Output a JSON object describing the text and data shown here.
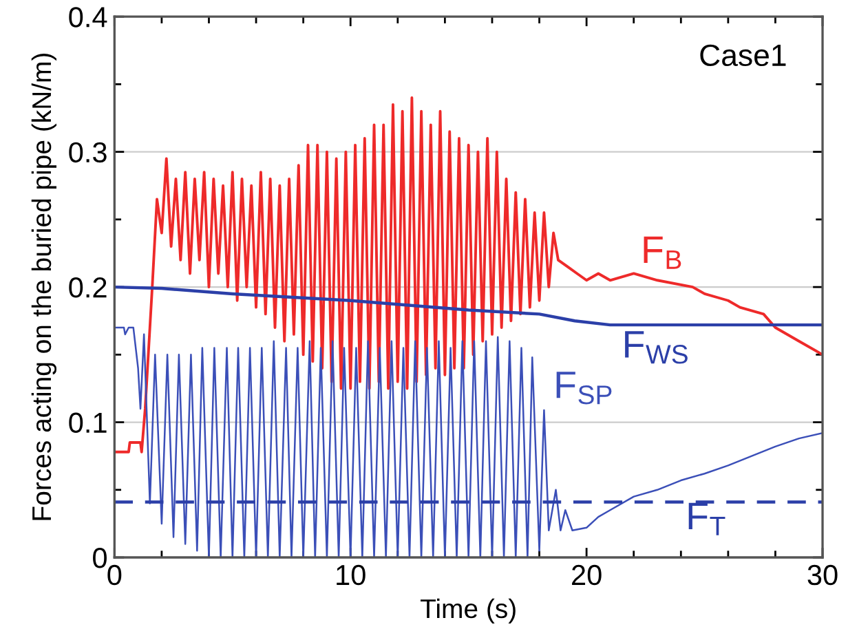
{
  "chart_data": {
    "type": "line",
    "xlabel": "Time (s)",
    "ylabel": "Forces acting on the buried pipe (kN/m)",
    "xlim": [
      0,
      30
    ],
    "ylim": [
      0,
      0.4
    ],
    "xticks": [
      0,
      {
        "value": 2,
        "label": null
      },
      {
        "value": 4,
        "label": null
      },
      {
        "value": 6,
        "label": null
      },
      {
        "value": 8,
        "label": null
      },
      10,
      {
        "value": 12,
        "label": null
      },
      {
        "value": 14,
        "label": null
      },
      {
        "value": 16,
        "label": null
      },
      {
        "value": 18,
        "label": null
      },
      20,
      {
        "value": 22,
        "label": null
      },
      {
        "value": 24,
        "label": null
      },
      {
        "value": 26,
        "label": null
      },
      {
        "value": 28,
        "label": null
      },
      30
    ],
    "yticks": [
      0,
      {
        "value": 0.05,
        "label": null
      },
      0.1,
      {
        "value": 0.15,
        "label": null
      },
      0.2,
      {
        "value": 0.25,
        "label": null
      },
      0.3,
      {
        "value": 0.35,
        "label": null
      },
      0.4
    ],
    "grid": "y",
    "series": [
      {
        "name": "F$_{B}$",
        "color": "#ee2a2a",
        "line_style": "solid",
        "x": [
          0,
          0.6,
          0.65,
          1.1,
          1.15,
          1.3,
          1.5,
          1.6,
          1.8,
          2.0,
          2.2,
          2.4,
          2.6,
          2.8,
          3.0,
          3.2,
          3.4,
          3.6,
          3.8,
          4.0,
          4.2,
          4.4,
          4.6,
          4.8,
          5.0,
          5.2,
          5.4,
          5.6,
          5.8,
          6.0,
          6.2,
          6.4,
          6.6,
          6.8,
          7.0,
          7.2,
          7.4,
          7.6,
          7.8,
          8.0,
          8.2,
          8.4,
          8.6,
          8.8,
          9.0,
          9.2,
          9.4,
          9.6,
          9.8,
          10.0,
          10.2,
          10.4,
          10.6,
          10.8,
          11.0,
          11.2,
          11.4,
          11.6,
          11.8,
          12.0,
          12.2,
          12.4,
          12.6,
          12.8,
          13.0,
          13.2,
          13.4,
          13.6,
          13.8,
          14.0,
          14.2,
          14.4,
          14.6,
          14.8,
          15.0,
          15.2,
          15.4,
          15.6,
          15.8,
          16.0,
          16.2,
          16.4,
          16.6,
          16.8,
          17.0,
          17.2,
          17.4,
          17.6,
          17.8,
          18.0,
          18.2,
          18.4,
          18.6,
          18.8,
          19.2,
          19.6,
          20,
          20.5,
          21,
          22,
          23,
          24.5,
          25,
          26,
          26.5,
          27.5,
          28,
          29,
          30
        ],
        "values": [
          0.078,
          0.078,
          0.085,
          0.085,
          0.078,
          0.11,
          0.17,
          0.2,
          0.265,
          0.24,
          0.295,
          0.23,
          0.28,
          0.22,
          0.285,
          0.21,
          0.28,
          0.22,
          0.285,
          0.2,
          0.28,
          0.21,
          0.275,
          0.2,
          0.285,
          0.19,
          0.28,
          0.2,
          0.275,
          0.185,
          0.285,
          0.18,
          0.28,
          0.17,
          0.275,
          0.16,
          0.28,
          0.165,
          0.29,
          0.15,
          0.305,
          0.145,
          0.305,
          0.14,
          0.3,
          0.13,
          0.295,
          0.125,
          0.3,
          0.125,
          0.305,
          0.13,
          0.31,
          0.125,
          0.32,
          0.13,
          0.32,
          0.125,
          0.335,
          0.13,
          0.33,
          0.125,
          0.34,
          0.13,
          0.33,
          0.135,
          0.32,
          0.14,
          0.33,
          0.135,
          0.315,
          0.14,
          0.31,
          0.14,
          0.305,
          0.15,
          0.3,
          0.16,
          0.31,
          0.165,
          0.3,
          0.17,
          0.28,
          0.175,
          0.27,
          0.18,
          0.265,
          0.185,
          0.255,
          0.19,
          0.255,
          0.2,
          0.24,
          0.22,
          0.215,
          0.21,
          0.205,
          0.21,
          0.205,
          0.21,
          0.205,
          0.2,
          0.195,
          0.19,
          0.185,
          0.18,
          0.17,
          0.16,
          0.15
        ]
      },
      {
        "name": "F$_{WS}$",
        "color": "#2b3fa8",
        "line_style": "solid",
        "x": [
          0,
          2,
          5,
          10,
          15,
          18,
          19.5,
          21,
          25,
          30
        ],
        "values": [
          0.2,
          0.199,
          0.195,
          0.19,
          0.183,
          0.18,
          0.175,
          0.172,
          0.172,
          0.172
        ]
      },
      {
        "name": "F$_{SP}$",
        "color": "#3b4fb8",
        "line_style": "solid",
        "x": [
          0,
          0.4,
          0.45,
          0.6,
          0.8,
          1.0,
          1.1,
          1.25,
          1.5,
          1.72,
          2.0,
          2.24,
          2.5,
          2.73,
          3.0,
          3.24,
          3.5,
          3.72,
          4.0,
          4.23,
          4.5,
          4.76,
          5.0,
          5.24,
          5.5,
          5.74,
          6.0,
          6.24,
          6.5,
          6.75,
          7.0,
          7.27,
          7.5,
          7.76,
          8.0,
          8.27,
          8.5,
          8.74,
          9.0,
          9.24,
          9.5,
          9.73,
          10.0,
          10.24,
          10.5,
          10.74,
          11.0,
          11.24,
          11.5,
          11.74,
          12.0,
          12.24,
          12.5,
          12.74,
          13.0,
          13.24,
          13.5,
          13.74,
          14.0,
          14.24,
          14.5,
          14.74,
          15.0,
          15.24,
          15.5,
          15.74,
          16.0,
          16.24,
          16.5,
          16.74,
          17.0,
          17.24,
          17.5,
          17.7,
          18.0,
          18.2,
          18.4,
          18.7,
          18.9,
          19.1,
          19.4,
          20,
          20.5,
          21,
          22,
          23,
          24,
          25,
          26,
          27,
          28,
          29,
          30
        ],
        "values": [
          0.17,
          0.17,
          0.165,
          0.17,
          0.17,
          0.14,
          0.11,
          0.165,
          0.04,
          0.15,
          0.025,
          0.15,
          0.015,
          0.15,
          0.01,
          0.15,
          0.005,
          0.155,
          0,
          0.155,
          0,
          0.155,
          0,
          0.155,
          0,
          0.155,
          0,
          0.155,
          0,
          0.16,
          0,
          0.155,
          0,
          0.155,
          0,
          0.16,
          0,
          0.155,
          0,
          0.16,
          0,
          0.155,
          0,
          0.155,
          0,
          0.16,
          0,
          0.155,
          0,
          0.16,
          0,
          0.155,
          0,
          0.16,
          0,
          0.155,
          0,
          0.16,
          0,
          0.155,
          0,
          0.16,
          0,
          0.16,
          0,
          0.16,
          0,
          0.163,
          0,
          0.16,
          0,
          0.155,
          0,
          0.148,
          0.005,
          0.109,
          0.02,
          0.05,
          0.02,
          0.035,
          0.02,
          0.022,
          0.03,
          0.035,
          0.045,
          0.05,
          0.057,
          0.062,
          0.068,
          0.075,
          0.082,
          0.088,
          0.092
        ]
      },
      {
        "name": "F$_{T}$",
        "color": "#2b3fa8",
        "line_style": "dashed",
        "x": [
          0,
          30
        ],
        "values": [
          0.041,
          0.041
        ]
      }
    ],
    "annotations": [
      "Case1"
    ]
  }
}
